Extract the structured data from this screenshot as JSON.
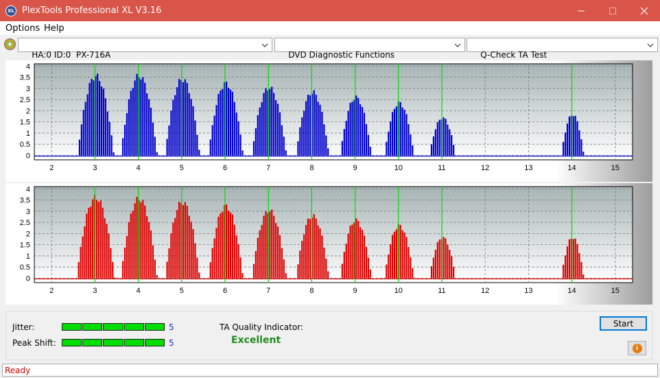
{
  "window": {
    "title": "PlexTools Professional XL V3.16",
    "logo_text": "XL"
  },
  "menu": [
    "Options",
    "Help"
  ],
  "toolbar": {
    "drive": "HA:0 ID:0  PX-716A",
    "function": "DVD Diagnostic Functions",
    "test": "Q-Check TA Test"
  },
  "colors": {
    "top_bars": "#0000cc",
    "bottom_bars": "#dd0000",
    "markers": "#00dd00",
    "title_bar": "#d9554a"
  },
  "chart_data": [
    {
      "type": "bar",
      "name": "top",
      "xticks": [
        2,
        3,
        4,
        5,
        6,
        7,
        8,
        9,
        10,
        11,
        12,
        13,
        14,
        15
      ],
      "yticks": [
        0,
        0.5,
        1,
        1.5,
        2,
        2.5,
        3,
        3.5,
        4
      ],
      "xlim": [
        1.6,
        15.4
      ],
      "ylim": [
        -0.2,
        4.1
      ],
      "grid": true,
      "markers_x": [
        3,
        4,
        5,
        6,
        7,
        8,
        9,
        10,
        11,
        14
      ],
      "peaks": [
        {
          "center": 3.0,
          "height": 3.7,
          "width": 0.42
        },
        {
          "center": 4.0,
          "height": 3.7,
          "width": 0.42
        },
        {
          "center": 5.0,
          "height": 3.55,
          "width": 0.4
        },
        {
          "center": 6.0,
          "height": 3.35,
          "width": 0.4
        },
        {
          "center": 7.0,
          "height": 3.15,
          "width": 0.4
        },
        {
          "center": 8.0,
          "height": 2.95,
          "width": 0.38
        },
        {
          "center": 9.0,
          "height": 2.7,
          "width": 0.36
        },
        {
          "center": 10.0,
          "height": 2.45,
          "width": 0.34
        },
        {
          "center": 11.0,
          "height": 1.75,
          "width": 0.3
        },
        {
          "center": 14.0,
          "height": 1.9,
          "width": 0.26
        }
      ]
    },
    {
      "type": "bar",
      "name": "bottom",
      "xticks": [
        2,
        3,
        4,
        5,
        6,
        7,
        8,
        9,
        10,
        11,
        12,
        13,
        14,
        15
      ],
      "yticks": [
        0,
        0.5,
        1,
        1.5,
        2,
        2.5,
        3,
        3.5,
        4
      ],
      "xlim": [
        1.6,
        15.4
      ],
      "ylim": [
        -0.2,
        4.1
      ],
      "grid": true,
      "markers_x": [
        3,
        4,
        5,
        6,
        7,
        8,
        9,
        10,
        11,
        14
      ],
      "peaks": [
        {
          "center": 3.0,
          "height": 3.75,
          "width": 0.44
        },
        {
          "center": 4.0,
          "height": 3.7,
          "width": 0.42
        },
        {
          "center": 5.0,
          "height": 3.55,
          "width": 0.4
        },
        {
          "center": 6.0,
          "height": 3.35,
          "width": 0.4
        },
        {
          "center": 7.0,
          "height": 3.15,
          "width": 0.4
        },
        {
          "center": 8.0,
          "height": 2.9,
          "width": 0.38
        },
        {
          "center": 9.0,
          "height": 2.7,
          "width": 0.36
        },
        {
          "center": 10.0,
          "height": 2.45,
          "width": 0.34
        },
        {
          "center": 11.0,
          "height": 1.9,
          "width": 0.3
        },
        {
          "center": 14.0,
          "height": 1.9,
          "width": 0.26
        }
      ]
    }
  ],
  "results": {
    "jitter_label": "Jitter:",
    "jitter_value": "5",
    "jitter_level": 5,
    "peak_label": "Peak Shift:",
    "peak_value": "5",
    "peak_level": 5,
    "ta_label": "TA Quality Indicator:",
    "ta_result": "Excellent"
  },
  "buttons": {
    "start": "Start"
  },
  "status": "Ready"
}
